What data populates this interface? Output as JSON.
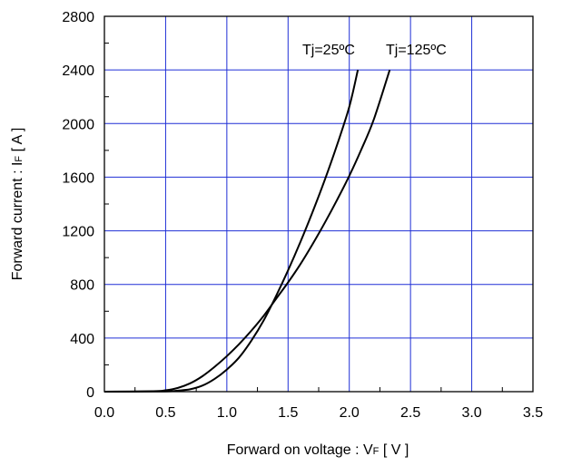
{
  "chart_data": {
    "type": "line",
    "xlabel": {
      "main": "Forward on voltage  :  V",
      "sub": "F",
      "unit": " [ V ]"
    },
    "ylabel": {
      "main": "Forward current  :  I",
      "sub": "F",
      "unit": " [ A ]"
    },
    "xlim": [
      0.0,
      3.5
    ],
    "ylim": [
      0,
      2800
    ],
    "x_ticks": [
      "0.0",
      "0.5",
      "1.0",
      "1.5",
      "2.0",
      "2.5",
      "3.0",
      "3.5"
    ],
    "y_ticks": [
      "0",
      "400",
      "800",
      "1200",
      "1600",
      "2000",
      "2400",
      "2800"
    ],
    "grid": true,
    "series": [
      {
        "name": "Tj=25ºC",
        "x": [
          0.0,
          0.5,
          0.6,
          0.7,
          0.8,
          0.9,
          1.0,
          1.1,
          1.2,
          1.3,
          1.4,
          1.5,
          1.6,
          1.7,
          1.8,
          1.9,
          2.0,
          2.07
        ],
        "y": [
          0,
          2,
          8,
          18,
          45,
          95,
          165,
          255,
          380,
          530,
          710,
          905,
          1115,
          1340,
          1580,
          1840,
          2125,
          2400
        ]
      },
      {
        "name": "Tj=125ºC",
        "x": [
          0.0,
          0.4,
          0.5,
          0.6,
          0.7,
          0.8,
          0.9,
          1.0,
          1.1,
          1.2,
          1.3,
          1.4,
          1.5,
          1.6,
          1.7,
          1.8,
          1.9,
          2.0,
          2.1,
          2.2,
          2.33
        ],
        "y": [
          0,
          3,
          10,
          28,
          62,
          115,
          185,
          265,
          355,
          455,
          565,
          690,
          815,
          950,
          1100,
          1260,
          1430,
          1610,
          1810,
          2030,
          2400
        ]
      }
    ]
  }
}
